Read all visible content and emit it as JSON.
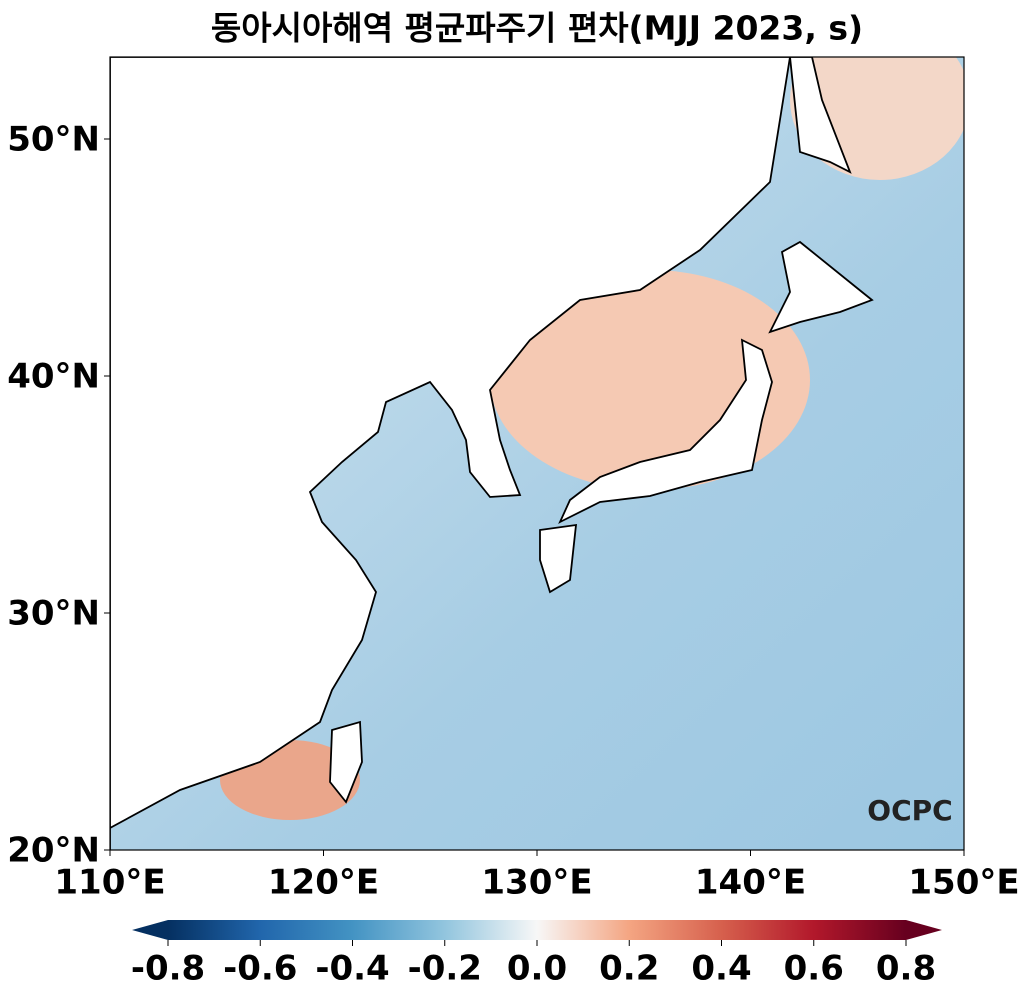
{
  "title": "동아시아해역 평균파주기 편차(MJJ 2023, s)",
  "map": {
    "lon_range": [
      110,
      150
    ],
    "lat_range": [
      20,
      53.46
    ],
    "lon_ticks": [
      {
        "value": 110,
        "label": "110°E"
      },
      {
        "value": 120,
        "label": "120°E"
      },
      {
        "value": 130,
        "label": "130°E"
      },
      {
        "value": 140,
        "label": "140°E"
      },
      {
        "value": 150,
        "label": "150°E"
      }
    ],
    "lat_ticks": [
      {
        "value": 20,
        "label": "20°N"
      },
      {
        "value": 30,
        "label": "30°N"
      },
      {
        "value": 40,
        "label": "40°N"
      },
      {
        "value": 50,
        "label": "50°N"
      }
    ]
  },
  "colorbar": {
    "range": [
      -0.8,
      0.8
    ],
    "ticks": [
      -0.8,
      -0.6,
      -0.4,
      -0.2,
      {
        "value": 0,
        "label": "0.0"
      },
      0.2,
      0.4,
      0.6,
      0.8
    ]
  },
  "logo": "OCPC"
}
